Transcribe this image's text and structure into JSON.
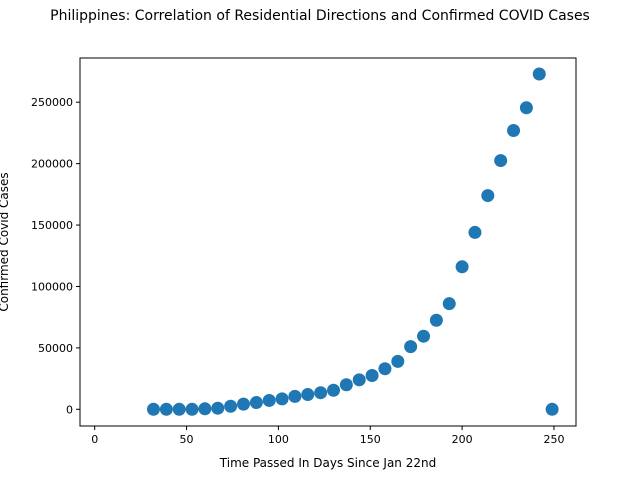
{
  "chart_data": {
    "type": "scatter",
    "title": "Philippines: Correlation of Residential Directions and Confirmed COVID Cases",
    "xlabel": "Time Passed In Days Since Jan 22nd",
    "ylabel": "Confirmed Covid Cases",
    "xlim": [
      -8,
      262
    ],
    "ylim": [
      -13600,
      286000
    ],
    "xticks": [
      0,
      50,
      100,
      150,
      200,
      250
    ],
    "yticks": [
      0,
      50000,
      100000,
      150000,
      200000,
      250000
    ],
    "grid": false,
    "legend": "none",
    "marker_color": "#1f77b4",
    "series": [
      {
        "x": [
          32,
          39,
          46,
          53,
          60,
          67,
          74,
          81,
          88,
          95,
          102,
          109,
          116,
          123,
          130,
          137,
          144,
          151,
          158,
          165,
          172,
          179,
          186,
          193,
          200,
          207,
          214,
          221,
          228,
          235,
          242,
          249
        ],
        "y": [
          0,
          0,
          0,
          0,
          400,
          900,
          2500,
          4200,
          5500,
          7200,
          8500,
          10500,
          12000,
          13500,
          15500,
          20000,
          24000,
          27500,
          33000,
          39000,
          51000,
          59500,
          72500,
          86000,
          116000,
          144000,
          174000,
          202500,
          227000,
          245500,
          273000,
          0
        ]
      }
    ]
  }
}
